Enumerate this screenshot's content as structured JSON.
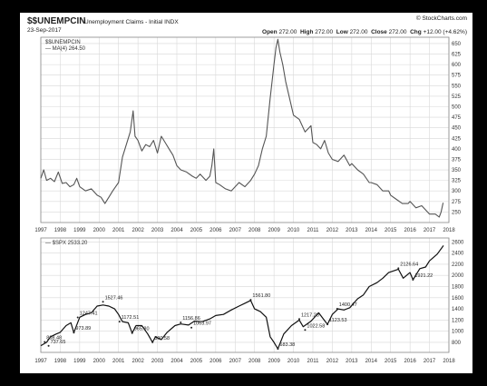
{
  "header": {
    "symbol": "$$UNEMPCIN",
    "name": "Unemployment Claims - Initial INDX",
    "date": "23-Sep-2017",
    "source": "© StockCharts.com",
    "open_label": "Open",
    "open": "272.00",
    "high_label": "High",
    "high": "272.00",
    "low_label": "Low",
    "low": "272.00",
    "close_label": "Close",
    "close": "272.00",
    "chg_label": "Chg",
    "chg": "+12.00 (+4.62%)"
  },
  "chart_data": [
    {
      "type": "line",
      "legend": [
        "$$UNEMPCIN",
        "— MA(4) 264.50"
      ],
      "ylim": [
        225,
        665
      ],
      "yticks": [
        250,
        275,
        300,
        325,
        350,
        375,
        400,
        425,
        450,
        475,
        500,
        525,
        550,
        575,
        600,
        625,
        650
      ],
      "xticks": [
        "1997",
        "1998",
        "1999",
        "2000",
        "2001",
        "2002",
        "2003",
        "2004",
        "2005",
        "2006",
        "2007",
        "2008",
        "2009",
        "2010",
        "2011",
        "2012",
        "2013",
        "2014",
        "2015",
        "2016",
        "2017",
        "2018"
      ],
      "grid": true,
      "series": [
        {
          "x": [
            1997.0,
            1997.15,
            1997.3,
            1997.5,
            1997.7,
            1997.9,
            1998.1,
            1998.3,
            1998.5,
            1998.7,
            1998.85,
            1999.0,
            1999.3,
            1999.6,
            1999.9,
            2000.1,
            2000.3,
            2000.5,
            2000.7,
            2000.85,
            2001.0,
            2001.2,
            2001.4,
            2001.6,
            2001.75,
            2001.85,
            2002.0,
            2002.2,
            2002.4,
            2002.6,
            2002.8,
            2003.0,
            2003.2,
            2003.4,
            2003.6,
            2003.8,
            2004.0,
            2004.2,
            2004.5,
            2004.8,
            2005.0,
            2005.2,
            2005.5,
            2005.7,
            2005.8,
            2005.9,
            2006.0,
            2006.2,
            2006.5,
            2006.8,
            2007.0,
            2007.2,
            2007.5,
            2007.8,
            2008.0,
            2008.2,
            2008.4,
            2008.6,
            2008.8,
            2009.0,
            2009.1,
            2009.2,
            2009.3,
            2009.45,
            2009.6,
            2009.8,
            2010.0,
            2010.3,
            2010.6,
            2010.9,
            2011.0,
            2011.2,
            2011.4,
            2011.6,
            2011.8,
            2012.0,
            2012.3,
            2012.6,
            2012.9,
            2013.0,
            2013.3,
            2013.6,
            2013.9,
            2014.0,
            2014.3,
            2014.6,
            2014.9,
            2015.0,
            2015.3,
            2015.6,
            2015.9,
            2016.0,
            2016.3,
            2016.6,
            2016.9,
            2017.0,
            2017.3,
            2017.5,
            2017.6,
            2017.7
          ],
          "y": [
            330,
            350,
            325,
            330,
            322,
            345,
            318,
            320,
            310,
            315,
            330,
            310,
            300,
            305,
            290,
            285,
            270,
            285,
            300,
            310,
            320,
            380,
            410,
            440,
            490,
            430,
            420,
            395,
            410,
            405,
            420,
            390,
            430,
            415,
            400,
            385,
            360,
            350,
            345,
            335,
            330,
            340,
            325,
            335,
            360,
            400,
            320,
            315,
            305,
            300,
            310,
            320,
            310,
            325,
            340,
            360,
            400,
            430,
            520,
            600,
            640,
            660,
            630,
            600,
            560,
            520,
            480,
            470,
            440,
            455,
            415,
            410,
            400,
            420,
            390,
            375,
            370,
            385,
            360,
            365,
            350,
            340,
            320,
            320,
            315,
            300,
            300,
            290,
            280,
            270,
            270,
            275,
            260,
            265,
            250,
            245,
            245,
            238,
            250,
            272
          ]
        }
      ]
    },
    {
      "type": "line",
      "legend": [
        "— $SPX 2533.20"
      ],
      "ylim": [
        620,
        2670
      ],
      "yticks": [
        800,
        1000,
        1200,
        1400,
        1600,
        1800,
        2000,
        2200,
        2400,
        2600
      ],
      "xticks": [
        "1997",
        "1998",
        "1999",
        "2000",
        "2001",
        "2002",
        "2003",
        "2004",
        "2005",
        "2006",
        "2007",
        "2008",
        "2009",
        "2010",
        "2011",
        "2012",
        "2013",
        "2014",
        "2015",
        "2016",
        "2017",
        "2018"
      ],
      "grid": true,
      "annotations": [
        {
          "label": "808.48",
          "x": 1997.2,
          "y": 808
        },
        {
          "label": "737.65",
          "x": 1997.4,
          "y": 737
        },
        {
          "label": "973.89",
          "x": 1998.7,
          "y": 974
        },
        {
          "label": "1247.41",
          "x": 1998.9,
          "y": 1247
        },
        {
          "label": "1527.46",
          "x": 2000.2,
          "y": 1527
        },
        {
          "label": "1172.51",
          "x": 2001.05,
          "y": 1172
        },
        {
          "label": "965.80",
          "x": 2001.7,
          "y": 966
        },
        {
          "label": "800.58",
          "x": 2002.75,
          "y": 800
        },
        {
          "label": "1156.86",
          "x": 2004.2,
          "y": 1157
        },
        {
          "label": "1063.97",
          "x": 2004.75,
          "y": 1064
        },
        {
          "label": "1561.80",
          "x": 2007.8,
          "y": 1562
        },
        {
          "label": "683.38",
          "x": 2009.2,
          "y": 683
        },
        {
          "label": "1217.28",
          "x": 2010.3,
          "y": 1217
        },
        {
          "label": "1022.58",
          "x": 2010.6,
          "y": 1022
        },
        {
          "label": "1123.53",
          "x": 2011.75,
          "y": 1123
        },
        {
          "label": "1400.47",
          "x": 2012.25,
          "y": 1400
        },
        {
          "label": "2126.64",
          "x": 2015.4,
          "y": 2127
        },
        {
          "label": "1921.22",
          "x": 2016.15,
          "y": 1921
        }
      ],
      "series": [
        {
          "name": "$SPX",
          "x": [
            1997.0,
            1997.3,
            1997.5,
            1997.8,
            1998.0,
            1998.3,
            1998.55,
            1998.7,
            1999.0,
            1999.3,
            1999.6,
            1999.9,
            2000.2,
            2000.5,
            2000.8,
            2001.0,
            2001.2,
            2001.5,
            2001.7,
            2001.9,
            2002.2,
            2002.5,
            2002.75,
            2002.9,
            2003.2,
            2003.5,
            2003.9,
            2004.2,
            2004.6,
            2004.9,
            2005.3,
            2005.7,
            2006.0,
            2006.4,
            2006.8,
            2007.2,
            2007.5,
            2007.8,
            2008.0,
            2008.3,
            2008.6,
            2008.8,
            2009.0,
            2009.2,
            2009.5,
            2009.9,
            2010.3,
            2010.5,
            2010.9,
            2011.3,
            2011.6,
            2011.75,
            2012.0,
            2012.3,
            2012.6,
            2012.9,
            2013.3,
            2013.6,
            2013.9,
            2014.3,
            2014.6,
            2014.9,
            2015.4,
            2015.65,
            2016.0,
            2016.15,
            2016.5,
            2016.8,
            2017.0,
            2017.4,
            2017.72
          ],
          "y": [
            740,
            800,
            900,
            950,
            980,
            1100,
            1150,
            974,
            1250,
            1300,
            1330,
            1450,
            1470,
            1450,
            1400,
            1300,
            1172,
            1150,
            966,
            1100,
            1100,
            950,
            800,
            900,
            850,
            980,
            1100,
            1130,
            1110,
            1180,
            1170,
            1220,
            1280,
            1300,
            1380,
            1450,
            1500,
            1550,
            1400,
            1350,
            1250,
            900,
            800,
            683,
            950,
            1100,
            1200,
            1080,
            1180,
            1330,
            1190,
            1123,
            1300,
            1400,
            1380,
            1420,
            1580,
            1650,
            1800,
            1870,
            1950,
            2050,
            2110,
            1950,
            2050,
            1921,
            2120,
            2150,
            2260,
            2380,
            2533
          ]
        }
      ]
    }
  ]
}
